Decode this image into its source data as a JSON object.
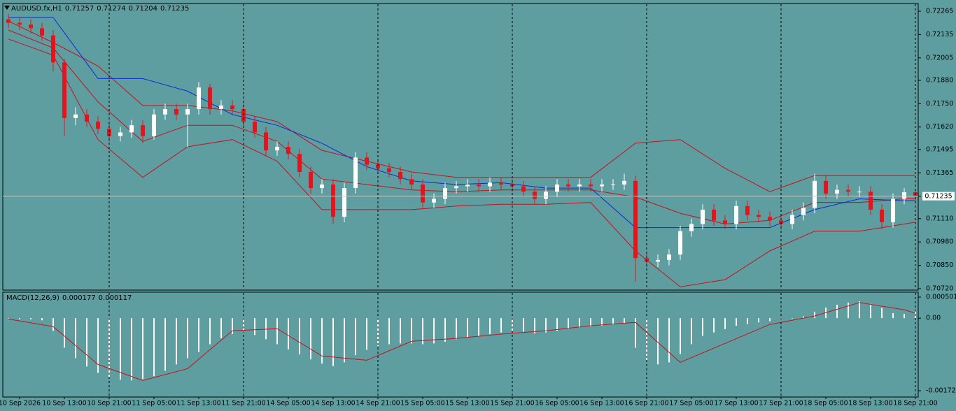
{
  "chart_data": [
    {
      "type": "candlestick",
      "title": "AUDUSD.fx,H1",
      "readout": [
        0.71257,
        0.71274,
        0.71204,
        0.71235
      ],
      "categories": [
        null,
        "10 Sep 2026",
        null,
        null,
        null,
        "10 Sep 13:00",
        null,
        null,
        null,
        "10 Sep 21:00",
        null,
        null,
        null,
        "11 Sep 05:00",
        null,
        null,
        null,
        "11 Sep 13:00",
        null,
        null,
        null,
        "11 Sep 21:00",
        null,
        null,
        null,
        "14 Sep 05:00",
        null,
        null,
        null,
        "14 Sep 13:00",
        null,
        null,
        null,
        "14 Sep 21:00",
        null,
        null,
        null,
        "15 Sep 05:00",
        null,
        null,
        null,
        "15 Sep 13:00",
        null,
        null,
        null,
        "15 Sep 21:00",
        null,
        null,
        null,
        "16 Sep 05:00",
        null,
        null,
        null,
        "16 Sep 13:00",
        null,
        null,
        null,
        "16 Sep 21:00",
        null,
        null,
        null,
        "17 Sep 05:00",
        null,
        null,
        null,
        "17 Sep 13:00",
        null,
        null,
        null,
        "17 Sep 21:00",
        null,
        null,
        null,
        "18 Sep 05:00",
        null,
        null,
        null,
        "18 Sep 13:00",
        null,
        null,
        null,
        "18 Sep 21:00"
      ],
      "open": [
        0.7222,
        0.722,
        0.7219,
        0.7217,
        0.7213,
        0.7198,
        0.7167,
        0.7169,
        0.7165,
        0.7161,
        0.7157,
        0.7159,
        0.7163,
        0.7157,
        0.7169,
        0.7172,
        0.7169,
        0.7172,
        0.7184,
        0.7172,
        0.7174,
        0.7172,
        0.7165,
        0.7159,
        0.7149,
        0.7151,
        0.7147,
        0.7137,
        0.7128,
        0.713,
        0.7112,
        0.7128,
        0.7145,
        0.7141,
        0.7139,
        0.7137,
        0.7133,
        0.713,
        0.712,
        0.7122,
        0.7128,
        0.7129,
        0.713,
        0.7129,
        0.7131,
        0.713,
        0.7129,
        0.7126,
        0.7122,
        0.7126,
        0.713,
        0.7129,
        0.713,
        0.7129,
        0.713,
        0.713,
        0.7132,
        0.7089,
        0.7087,
        0.7088,
        0.7091,
        0.7104,
        0.7108,
        0.7116,
        0.711,
        0.7108,
        0.7118,
        0.7113,
        0.7112,
        0.711,
        0.7108,
        0.7113,
        0.7117,
        0.7132,
        0.7125,
        0.7127,
        0.7126,
        0.7126,
        0.7116,
        0.7109,
        0.7122,
        0.71257
      ],
      "high": [
        0.7225,
        0.7223,
        0.7222,
        0.722,
        0.7216,
        0.72,
        0.7173,
        0.7172,
        0.7168,
        0.7164,
        0.7162,
        0.7166,
        0.7166,
        0.7172,
        0.7175,
        0.7175,
        0.7175,
        0.7187,
        0.7186,
        0.7177,
        0.7177,
        0.7175,
        0.7168,
        0.7162,
        0.7154,
        0.7154,
        0.715,
        0.714,
        0.7133,
        0.7133,
        0.7131,
        0.7148,
        0.7148,
        0.7144,
        0.7142,
        0.714,
        0.7136,
        0.7133,
        0.7125,
        0.7131,
        0.7132,
        0.7133,
        0.7133,
        0.7134,
        0.7134,
        0.7133,
        0.7132,
        0.7129,
        0.7129,
        0.7133,
        0.7133,
        0.7133,
        0.7133,
        0.7133,
        0.7133,
        0.7136,
        0.7135,
        0.7092,
        0.7091,
        0.7094,
        0.7107,
        0.7111,
        0.7119,
        0.7119,
        0.7113,
        0.7121,
        0.7121,
        0.7116,
        0.7115,
        0.7113,
        0.7116,
        0.712,
        0.7136,
        0.7135,
        0.713,
        0.713,
        0.7129,
        0.7129,
        0.7119,
        0.7125,
        0.7128,
        0.71274
      ],
      "low": [
        0.7217,
        0.7216,
        0.7214,
        0.721,
        0.7193,
        0.7157,
        0.7163,
        0.7162,
        0.7158,
        0.7154,
        0.7154,
        0.7156,
        0.7153,
        0.7155,
        0.7166,
        0.7166,
        0.7151,
        0.7169,
        0.7169,
        0.7169,
        0.7169,
        0.7162,
        0.7156,
        0.7146,
        0.7146,
        0.7144,
        0.7134,
        0.7125,
        0.7125,
        0.7108,
        0.7109,
        0.7125,
        0.7138,
        0.7136,
        0.7134,
        0.713,
        0.7127,
        0.7117,
        0.7117,
        0.7119,
        0.7125,
        0.7126,
        0.7126,
        0.7126,
        0.7127,
        0.7126,
        0.7123,
        0.7119,
        0.7119,
        0.7123,
        0.7126,
        0.7126,
        0.7126,
        0.7126,
        0.7127,
        0.7127,
        0.7076,
        0.7084,
        0.7084,
        0.7085,
        0.7088,
        0.7101,
        0.7105,
        0.7107,
        0.7105,
        0.7105,
        0.711,
        0.7109,
        0.7107,
        0.7105,
        0.7105,
        0.711,
        0.7114,
        0.7122,
        0.7122,
        0.7123,
        0.7123,
        0.7113,
        0.7105,
        0.7106,
        0.7119,
        0.71204
      ],
      "close": [
        0.722,
        0.7219,
        0.7217,
        0.7213,
        0.7198,
        0.7167,
        0.7169,
        0.7165,
        0.7161,
        0.7157,
        0.7159,
        0.7163,
        0.7157,
        0.7169,
        0.7172,
        0.7169,
        0.7172,
        0.7184,
        0.7172,
        0.7174,
        0.7172,
        0.7165,
        0.7159,
        0.7149,
        0.7151,
        0.7147,
        0.7137,
        0.7128,
        0.713,
        0.7112,
        0.7128,
        0.7145,
        0.7141,
        0.7139,
        0.7137,
        0.7133,
        0.713,
        0.712,
        0.7122,
        0.7128,
        0.7129,
        0.713,
        0.7129,
        0.7131,
        0.713,
        0.7129,
        0.7126,
        0.7122,
        0.7126,
        0.713,
        0.7129,
        0.713,
        0.7129,
        0.713,
        0.713,
        0.7132,
        0.7089,
        0.7087,
        0.7088,
        0.7091,
        0.7104,
        0.7108,
        0.7116,
        0.711,
        0.7108,
        0.7118,
        0.7113,
        0.7112,
        0.711,
        0.7108,
        0.7113,
        0.7117,
        0.7132,
        0.7125,
        0.7127,
        0.7126,
        0.7126,
        0.7116,
        0.7109,
        0.7122,
        0.71257,
        0.71235
      ],
      "up_color": "#ffffff",
      "down_color": "#e3141b",
      "ylim": [
        0.70716,
        0.72304
      ],
      "yticks": [
        0.72265,
        0.72135,
        0.72005,
        {
          "value": 0.7188,
          "label": "0.71880"
        },
        {
          "value": 0.7175,
          "label": "0.71750"
        },
        {
          "value": 0.7162,
          "label": "0.71620"
        },
        0.71495,
        0.71365,
        0.71235,
        {
          "value": 0.7111,
          "label": "0.71110"
        },
        {
          "value": 0.7098,
          "label": "0.70980"
        },
        {
          "value": 0.7085,
          "label": "0.70850"
        },
        {
          "value": 0.7072,
          "label": "0.70720"
        }
      ],
      "current_price": 0.71235,
      "lines": [
        {
          "color": "#c8101a",
          "x": [
            0,
            4,
            8,
            12,
            16,
            20,
            24,
            28,
            32,
            36,
            40,
            44,
            48,
            52,
            56,
            60,
            64,
            68,
            72,
            76,
            80,
            81
          ],
          "values": [
            0.7221,
            0.7209,
            0.7196,
            0.7174,
            0.7174,
            0.7171,
            0.7165,
            0.7149,
            0.7143,
            0.7137,
            0.7134,
            0.7134,
            0.7134,
            0.7134,
            0.7153,
            0.7155,
            0.7139,
            0.7126,
            0.7135,
            0.7135,
            0.7135,
            0.7135
          ]
        },
        {
          "color": "#c8101a",
          "x": [
            0,
            4,
            8,
            12,
            16,
            20,
            24,
            28,
            32,
            36,
            40,
            44,
            48,
            52,
            56,
            60,
            64,
            68,
            72,
            76,
            80,
            81
          ],
          "values": [
            0.7216,
            0.7206,
            0.7176,
            0.7154,
            0.7163,
            0.7163,
            0.7154,
            0.7133,
            0.713,
            0.7127,
            0.7126,
            0.7127,
            0.7127,
            0.7127,
            0.7123,
            0.7114,
            0.7108,
            0.711,
            0.712,
            0.712,
            0.7122,
            0.7122
          ]
        },
        {
          "color": "#c8101a",
          "x": [
            0,
            4,
            8,
            12,
            16,
            20,
            24,
            28,
            32,
            36,
            40,
            44,
            48,
            52,
            56,
            60,
            64,
            68,
            72,
            76,
            80,
            81
          ],
          "values": [
            0.7211,
            0.7202,
            0.7155,
            0.7134,
            0.7151,
            0.7155,
            0.7143,
            0.7116,
            0.7116,
            0.7116,
            0.7118,
            0.7119,
            0.7119,
            0.712,
            0.7093,
            0.7073,
            0.7077,
            0.7093,
            0.7104,
            0.7104,
            0.7108,
            0.7109
          ]
        },
        {
          "color": "#0a2bd6",
          "x": [
            0,
            4,
            8,
            12,
            16,
            20,
            24,
            28,
            32,
            36,
            40,
            44,
            48,
            52,
            56,
            60,
            64,
            68,
            72,
            76,
            80,
            81
          ],
          "values": [
            0.7223,
            0.7223,
            0.7189,
            0.7189,
            0.7182,
            0.7169,
            0.7163,
            0.7153,
            0.714,
            0.7132,
            0.713,
            0.7131,
            0.7128,
            0.7128,
            0.7106,
            0.7106,
            0.7106,
            0.7106,
            0.7116,
            0.7122,
            0.7121,
            0.7121
          ]
        }
      ]
    },
    {
      "type": "bar",
      "title": "MACD(12,26,9)",
      "readout": [
        0.000177,
        0.000117
      ],
      "values": [
        -1e-05,
        -2e-05,
        -3e-05,
        -5e-05,
        -0.0003,
        -0.0007,
        -0.00095,
        -0.00115,
        -0.0013,
        -0.0014,
        -0.00146,
        -0.00148,
        -0.00145,
        -0.00138,
        -0.00125,
        -0.0011,
        -0.00095,
        -0.0008,
        -0.00062,
        -0.00048,
        -0.00038,
        -0.00034,
        -0.0004,
        -0.0005,
        -0.00062,
        -0.00074,
        -0.00086,
        -0.00098,
        -0.00108,
        -0.00114,
        -0.00105,
        -0.00088,
        -0.00075,
        -0.00066,
        -0.00062,
        -0.0006,
        -0.0006,
        -0.00062,
        -0.0006,
        -0.00056,
        -0.0005,
        -0.00046,
        -0.00042,
        -0.00038,
        -0.00034,
        -0.0003,
        -0.00032,
        -0.00036,
        -0.00034,
        -0.0003,
        -0.00026,
        -0.00022,
        -0.0002,
        -0.00018,
        -0.00015,
        -0.00012,
        -0.0007,
        -0.001,
        -0.0011,
        -0.00105,
        -0.00085,
        -0.00062,
        -0.00042,
        -0.00034,
        -0.00026,
        -0.00018,
        -0.00014,
        -0.0001,
        -7e-05,
        -4e-05,
        -1e-05,
        4e-05,
        0.00015,
        0.00025,
        0.00032,
        0.00037,
        0.0004,
        0.00034,
        0.00024,
        0.00012,
        0.0001,
        0.000177
      ],
      "color": "#ffffff",
      "signal": {
        "color": "#c8101a",
        "x": [
          0,
          4,
          8,
          12,
          16,
          20,
          24,
          28,
          32,
          36,
          40,
          44,
          48,
          52,
          56,
          60,
          64,
          68,
          72,
          76,
          80,
          81
        ],
        "values": [
          -2e-05,
          -0.0002,
          -0.0011,
          -0.00148,
          -0.0012,
          -0.0003,
          -0.00025,
          -0.0009,
          -0.001,
          -0.00055,
          -0.00048,
          -0.00038,
          -0.0003,
          -0.00018,
          -0.0001,
          -0.00105,
          -0.0006,
          -0.00015,
          5e-05,
          0.00037,
          0.0002,
          0.000117
        ]
      },
      "ylim": [
        -0.001725,
        0.000501
      ],
      "yticks": [
        0.000501,
        {
          "value": 0,
          "label": "0.00"
        },
        -0.001725
      ]
    }
  ]
}
